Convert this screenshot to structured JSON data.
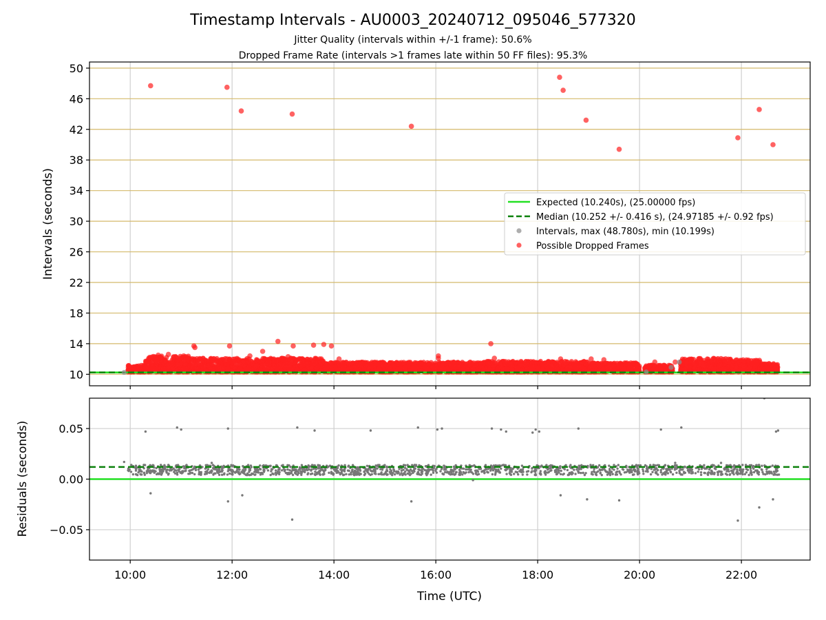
{
  "chart_data": {
    "title": "Timestamp Intervals - AU0003_20240712_095046_577320",
    "subtitle_1": "Jitter Quality (intervals within +/-1 frame): 50.6%",
    "subtitle_2": "Dropped Frame Rate (intervals >1 frames late within 50 FF files): 95.3%",
    "colors": {
      "expected": "#22e022",
      "median": "#0a800a",
      "intervals": "#8c8c8c",
      "dropped": "#ff2020",
      "hgrid_top": "#d4b96a",
      "grid": "#cfcfcf"
    },
    "top": {
      "type": "scatter",
      "ylabel": "Intervals (seconds)",
      "ylim": [
        8.5,
        50.8
      ],
      "yticks": [
        10,
        14,
        18,
        22,
        26,
        30,
        34,
        38,
        42,
        46,
        50
      ],
      "expected": 10.24,
      "median": 10.252,
      "legend": [
        {
          "kind": "line",
          "label": "Expected (10.240s), (25.00000 fps)"
        },
        {
          "kind": "dashed",
          "label": "Median (10.252 +/- 0.416 s), (24.97185 +/- 0.92 fps)"
        },
        {
          "kind": "marker-gray",
          "label": "Intervals, max (48.780s), min (10.199s)"
        },
        {
          "kind": "marker-red",
          "label": "Possible Dropped Frames"
        }
      ],
      "legend_placement": "center-right",
      "outliers": [
        [
          10.4,
          47.7
        ],
        [
          11.9,
          47.5
        ],
        [
          12.18,
          44.4
        ],
        [
          13.18,
          44.0
        ],
        [
          15.52,
          42.4
        ],
        [
          18.43,
          48.8
        ],
        [
          18.5,
          47.1
        ],
        [
          18.95,
          43.2
        ],
        [
          19.6,
          39.4
        ],
        [
          21.93,
          40.9
        ],
        [
          22.35,
          44.6
        ],
        [
          22.62,
          40.0
        ],
        [
          11.25,
          13.7
        ],
        [
          11.27,
          13.5
        ],
        [
          11.95,
          13.7
        ],
        [
          12.6,
          13.0
        ],
        [
          12.9,
          14.3
        ],
        [
          13.2,
          13.7
        ],
        [
          13.6,
          13.8
        ],
        [
          13.8,
          13.9
        ],
        [
          13.95,
          13.7
        ],
        [
          17.08,
          14.0
        ],
        [
          16.05,
          12.4
        ],
        [
          16.05,
          12.1
        ],
        [
          17.15,
          12.1
        ],
        [
          18.45,
          12.0
        ],
        [
          19.05,
          12.0
        ],
        [
          10.55,
          12.5
        ],
        [
          10.75,
          12.6
        ],
        [
          11.05,
          12.4
        ],
        [
          12.35,
          12.4
        ],
        [
          13.1,
          12.3
        ],
        [
          14.1,
          12.0
        ],
        [
          19.3,
          11.9
        ],
        [
          20.3,
          11.6
        ],
        [
          20.7,
          11.6
        ]
      ],
      "dense_segments": [
        [
          9.95,
          10.3,
          10.3,
          11.2
        ],
        [
          10.3,
          11.2,
          10.3,
          12.4
        ],
        [
          11.2,
          13.8,
          10.3,
          12.1
        ],
        [
          13.8,
          17.0,
          10.3,
          11.6
        ],
        [
          17.0,
          19.0,
          10.3,
          11.7
        ],
        [
          19.0,
          20.0,
          10.3,
          11.5
        ],
        [
          20.1,
          20.65,
          10.3,
          11.2
        ],
        [
          20.8,
          21.8,
          10.3,
          12.1
        ],
        [
          21.8,
          22.4,
          10.3,
          11.9
        ],
        [
          22.4,
          22.72,
          10.3,
          11.4
        ]
      ],
      "gray_points": [
        [
          9.88,
          10.25
        ],
        [
          20.62,
          10.9
        ],
        [
          20.78,
          11.6
        ],
        [
          20.13,
          10.3
        ]
      ]
    },
    "bottom": {
      "type": "scatter",
      "ylabel": "Residuals (seconds)",
      "xlabel": "Time (UTC)",
      "ylim": [
        -0.08,
        0.08
      ],
      "yticks": [
        -0.05,
        0.0,
        0.05
      ],
      "yticklabels": [
        "−0.05",
        "0.00",
        "0.05"
      ],
      "expected": 0.0,
      "median": 0.012,
      "outliers": [
        [
          9.88,
          0.017
        ],
        [
          10.3,
          0.047
        ],
        [
          10.4,
          -0.014
        ],
        [
          10.92,
          0.051
        ],
        [
          11.0,
          0.049
        ],
        [
          11.92,
          0.05
        ],
        [
          11.92,
          -0.022
        ],
        [
          12.2,
          -0.016
        ],
        [
          13.18,
          -0.04
        ],
        [
          13.28,
          0.051
        ],
        [
          13.62,
          0.048
        ],
        [
          14.72,
          0.048
        ],
        [
          15.52,
          -0.022
        ],
        [
          15.65,
          0.051
        ],
        [
          16.03,
          0.049
        ],
        [
          16.12,
          0.05
        ],
        [
          17.1,
          0.05
        ],
        [
          17.28,
          0.049
        ],
        [
          17.38,
          0.047
        ],
        [
          17.9,
          0.046
        ],
        [
          17.96,
          0.049
        ],
        [
          18.03,
          0.047
        ],
        [
          18.45,
          -0.016
        ],
        [
          18.8,
          0.05
        ],
        [
          18.97,
          -0.02
        ],
        [
          19.6,
          -0.021
        ],
        [
          20.42,
          0.049
        ],
        [
          20.82,
          0.051
        ],
        [
          21.93,
          -0.041
        ],
        [
          22.35,
          -0.028
        ],
        [
          22.45,
          0.08
        ],
        [
          22.62,
          -0.02
        ],
        [
          22.68,
          0.047
        ],
        [
          22.72,
          0.048
        ],
        [
          16.73,
          -0.001
        ],
        [
          11.6,
          0.016
        ],
        [
          12.6,
          0.005
        ],
        [
          20.7,
          0.016
        ],
        [
          21.6,
          0.016
        ]
      ],
      "dense_band": [
        9.95,
        22.75,
        0.004,
        0.014
      ]
    },
    "x": {
      "xlim": [
        9.2,
        23.35
      ],
      "ticks": [
        10,
        12,
        14,
        16,
        18,
        20,
        22
      ],
      "ticklabels": [
        "10:00",
        "12:00",
        "14:00",
        "16:00",
        "18:00",
        "20:00",
        "22:00"
      ]
    }
  }
}
